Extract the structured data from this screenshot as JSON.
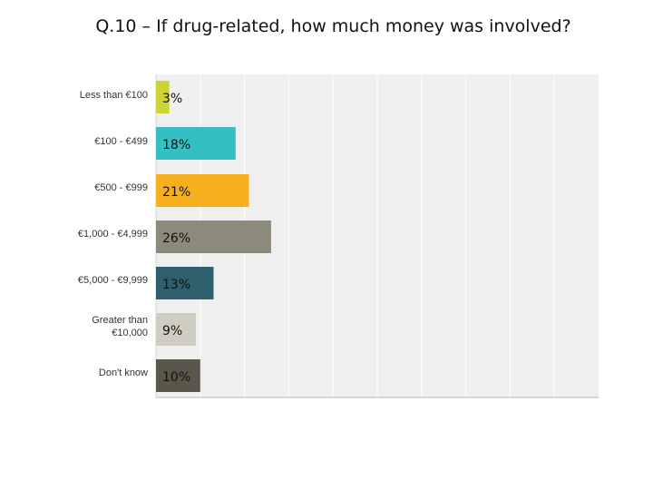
{
  "title": "Q.10 – If drug-related, how much money was involved?",
  "chart_data": {
    "type": "bar",
    "orientation": "horizontal",
    "title": "",
    "xlabel": "",
    "ylabel": "",
    "xlim": [
      0,
      100
    ],
    "grid": true,
    "legend": "none",
    "categories": [
      "Less than €100",
      "€100 - €499",
      "€500 - €999",
      "€1,000 - €4,999",
      "€5,000 - €9,999",
      "Greater than €10,000",
      "Don't know"
    ],
    "values": [
      3,
      18,
      21,
      26,
      13,
      9,
      10
    ],
    "data_labels": [
      "3%",
      "18%",
      "21%",
      "26%",
      "13%",
      "9%",
      "10%"
    ],
    "colors": [
      "#cfd435",
      "#35bfc2",
      "#f6b01e",
      "#8b8a7b",
      "#2e5f6b",
      "#cfcdbf",
      "#59574a"
    ],
    "plot_background": "#efefef",
    "gridline_color": "#ffffff"
  }
}
